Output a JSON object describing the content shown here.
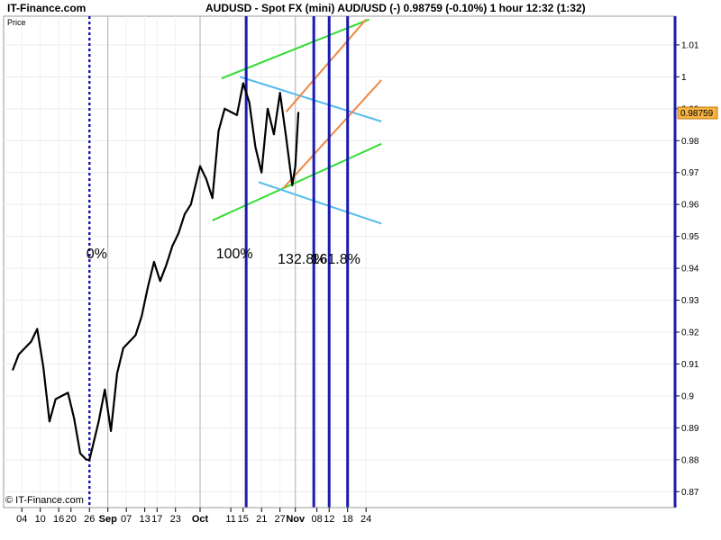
{
  "header": {
    "brand": "IT-Finance.com",
    "title": "AUDUSD - Spot FX (mini) AUD/USD (-)   0.98759 (-0.10%)     1 hour   12:32 (1:32)"
  },
  "copyright": "© IT-Finance.com",
  "price_tag": "0.98759",
  "chart_data": {
    "type": "line",
    "title": "AUDUSD - Spot FX (mini) AUD/USD (-)",
    "ylabel": "Price",
    "xlabel": "",
    "ylim": [
      0.865,
      1.019
    ],
    "yticks": [
      0.87,
      0.88,
      0.89,
      0.9,
      0.91,
      0.92,
      0.93,
      0.94,
      0.95,
      0.96,
      0.97,
      0.98,
      0.99,
      1,
      1.01
    ],
    "ytick_labels": [
      "0.87",
      "0.88",
      "0.89",
      "0.9",
      "0.91",
      "0.92",
      "0.93",
      "0.94",
      "0.95",
      "0.96",
      "0.97",
      "0.98",
      "0.99",
      "1",
      "1.01"
    ],
    "x_dates": [
      "Aug 4",
      "Aug 10",
      "Aug 16",
      "Aug 20",
      "Aug 26",
      "Sep 1",
      "Sep 7",
      "Sep 13",
      "Sep 17",
      "Sep 23",
      "Oct 1",
      "Oct 11",
      "Oct 15",
      "Oct 21",
      "Oct 27",
      "Nov 1",
      "Nov 8",
      "Nov 12",
      "Nov 18",
      "Nov 24"
    ],
    "x_tick_labels": [
      "04",
      "10",
      "16",
      "20",
      "26",
      "Sep",
      "07",
      "13",
      "17",
      "23",
      "Oct",
      "11",
      "15",
      "21",
      "27",
      "Nov",
      "08",
      "12",
      "18",
      "24"
    ],
    "month_starts": [
      "Sep",
      "Oct",
      "Nov"
    ],
    "series": [
      {
        "x": [
          "Aug 1",
          "Aug 3",
          "Aug 5",
          "Aug 7",
          "Aug 9",
          "Aug 11",
          "Aug 13",
          "Aug 15",
          "Aug 17",
          "Aug 19",
          "Aug 21",
          "Aug 23",
          "Aug 25",
          "Aug 26",
          "Aug 27",
          "Aug 29",
          "Aug 31",
          "Sep 2",
          "Sep 4",
          "Sep 6",
          "Sep 8",
          "Sep 10",
          "Sep 12",
          "Sep 14",
          "Sep 16",
          "Sep 18",
          "Sep 20",
          "Sep 22",
          "Sep 24",
          "Sep 26",
          "Sep 28",
          "Oct 1",
          "Oct 3",
          "Oct 5",
          "Oct 7",
          "Oct 9",
          "Oct 11",
          "Oct 13",
          "Oct 15",
          "Oct 17",
          "Oct 19",
          "Oct 21",
          "Oct 23",
          "Oct 25",
          "Oct 27",
          "Oct 29",
          "Oct 31",
          "Nov 1",
          "Nov 2"
        ],
        "values": [
          0.908,
          0.913,
          0.915,
          0.917,
          0.921,
          0.909,
          0.892,
          0.899,
          0.9,
          0.901,
          0.893,
          0.882,
          0.88,
          0.88,
          0.884,
          0.892,
          0.902,
          0.889,
          0.907,
          0.915,
          0.917,
          0.919,
          0.925,
          0.934,
          0.942,
          0.936,
          0.941,
          0.947,
          0.951,
          0.957,
          0.96,
          0.972,
          0.968,
          0.962,
          0.983,
          0.99,
          0.989,
          0.988,
          0.998,
          0.992,
          0.978,
          0.97,
          0.99,
          0.982,
          0.995,
          0.981,
          0.966,
          0.972,
          0.989
        ]
      }
    ],
    "trendlines": [
      {
        "color": "#33dd33",
        "points": [
          [
            "Oct 8",
            0.9995
          ],
          [
            "Nov 25",
            1.018
          ]
        ]
      },
      {
        "color": "#33dd33",
        "points": [
          [
            "Oct 5",
            0.955
          ],
          [
            "Nov 29",
            0.979
          ]
        ]
      },
      {
        "color": "#55bbee",
        "points": [
          [
            "Oct 14",
            1.0
          ],
          [
            "Nov 29",
            0.986
          ]
        ]
      },
      {
        "color": "#55bbee",
        "points": [
          [
            "Oct 20",
            0.967
          ],
          [
            "Nov 29",
            0.954
          ]
        ]
      },
      {
        "color": "#ee8844",
        "points": [
          [
            "Oct 29",
            0.989
          ],
          [
            "Nov 24",
            1.018
          ]
        ]
      },
      {
        "color": "#ee8844",
        "points": [
          [
            "Oct 28",
            0.965
          ],
          [
            "Nov 29",
            0.999
          ]
        ]
      }
    ],
    "vlines": [
      {
        "x": "Aug 26",
        "style": "dotted",
        "label": "0%"
      },
      {
        "x": "Oct 16",
        "style": "solid",
        "label": "100%"
      },
      {
        "x": "Nov 7",
        "style": "solid",
        "label": "132.8%"
      },
      {
        "x": "Nov 12",
        "style": "solid",
        "label": ""
      },
      {
        "x": "Nov 18",
        "style": "solid",
        "label": "161.8%"
      }
    ],
    "grid": true,
    "legend": "none"
  }
}
